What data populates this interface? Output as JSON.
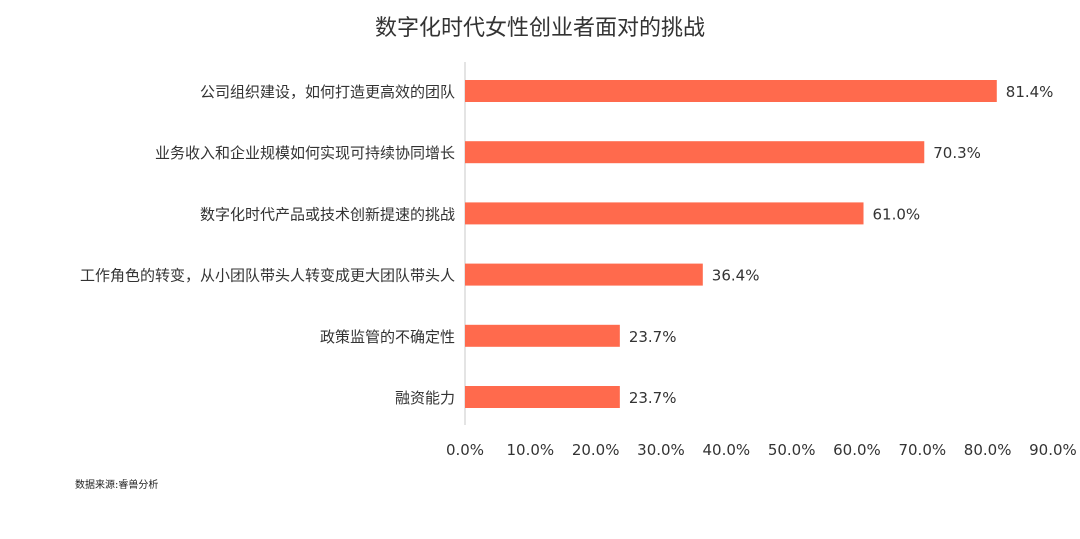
{
  "colors": {
    "bar": "#ff6a4d",
    "axis": "#c8c8c8",
    "text": "#333333"
  },
  "source_note": "数据来源:睿兽分析",
  "chart_data": {
    "type": "bar",
    "orientation": "horizontal",
    "title": "数字化时代女性创业者面对的挑战",
    "categories": [
      "公司组织建设，如何打造更高效的团队",
      "业务收入和企业规模如何实现可持续协同增长",
      "数字化时代产品或技术创新提速的挑战",
      "工作角色的转变，从小团队带头人转变成更大团队带头人",
      "政策监管的不确定性",
      "融资能力"
    ],
    "values": [
      81.4,
      70.3,
      61.0,
      36.4,
      23.7,
      23.7
    ],
    "value_labels": [
      "81.4%",
      "70.3%",
      "61.0%",
      "36.4%",
      "23.7%",
      "23.7%"
    ],
    "x_ticks": [
      "0.0%",
      "10.0%",
      "20.0%",
      "30.0%",
      "40.0%",
      "50.0%",
      "60.0%",
      "70.0%",
      "80.0%",
      "90.0%"
    ],
    "xlim": [
      0,
      90
    ],
    "grid": false,
    "legend": "none"
  }
}
